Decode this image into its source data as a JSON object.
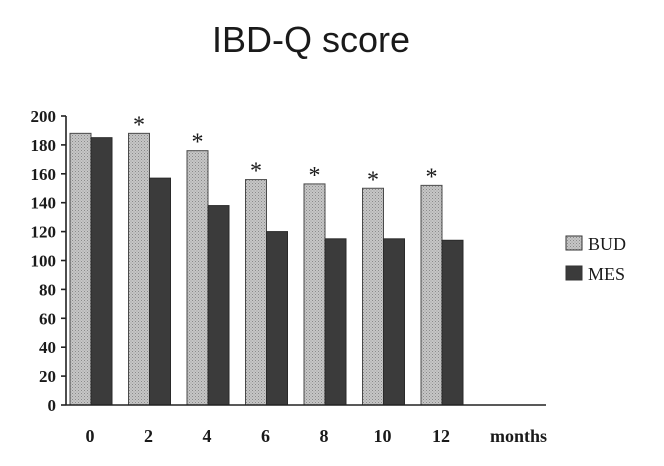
{
  "chart_data": {
    "type": "bar",
    "title": "IBD-Q score",
    "xlabel": "months",
    "ylabel": "",
    "ylim": [
      0,
      200
    ],
    "yticks": [
      0,
      20,
      40,
      60,
      80,
      100,
      120,
      140,
      160,
      180,
      200
    ],
    "categories": [
      "0",
      "2",
      "4",
      "6",
      "8",
      "10",
      "12"
    ],
    "series": [
      {
        "name": "BUD",
        "values": [
          188,
          188,
          176,
          156,
          153,
          150,
          152
        ],
        "color": "#b9b9b9"
      },
      {
        "name": "MES",
        "values": [
          185,
          157,
          138,
          120,
          115,
          115,
          114
        ],
        "color": "#3b3b3b"
      }
    ],
    "significance_marker": "*",
    "significant_categories": [
      "2",
      "4",
      "6",
      "8",
      "10",
      "12"
    ],
    "legend_position": "right",
    "grid": false
  }
}
